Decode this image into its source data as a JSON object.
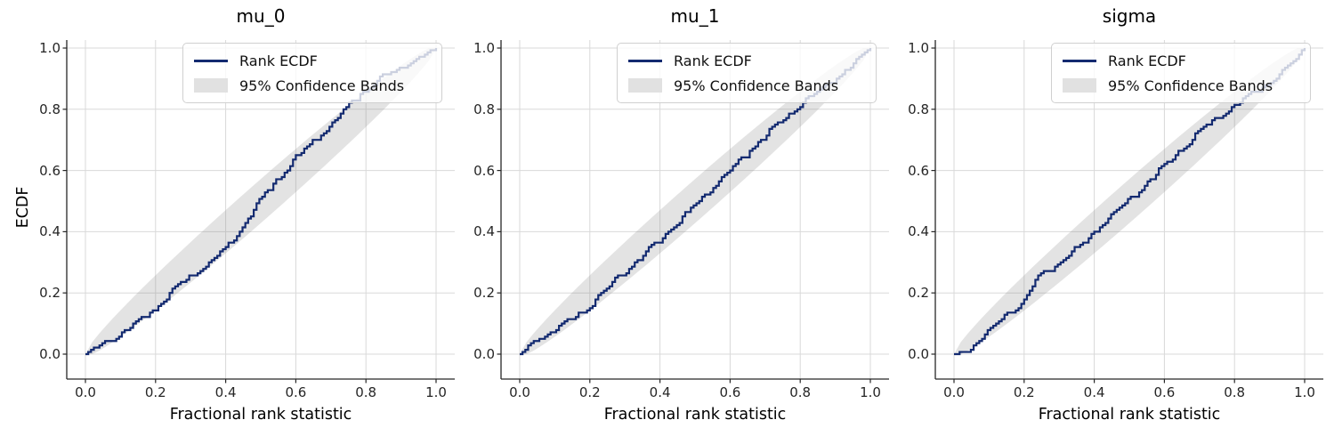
{
  "figure": {
    "background": "#ffffff",
    "shared_xlabel": "Fractional rank statistic",
    "shared_ylabel": "ECDF"
  },
  "colors": {
    "rank_ecdf_line": "#132a70",
    "confidence_band_fill": "#808080",
    "confidence_band_opacity": 0.22,
    "grid_line": "#d9d9d9",
    "axis_spine": "#262626",
    "tick_label": "#262626",
    "legend_border": "#d0d0d0",
    "legend_background": "rgba(255,255,255,0.78)"
  },
  "chart_data": [
    {
      "type": "line",
      "title": "mu_0",
      "xlabel": "Fractional rank statistic",
      "ylabel": "ECDF",
      "xlim": [
        -0.05,
        1.05
      ],
      "ylim": [
        -0.08,
        1.09
      ],
      "grid": true,
      "xticks": [
        "0.0",
        "0.2",
        "0.4",
        "0.6",
        "0.8",
        "1.0"
      ],
      "yticks": [
        "0.0",
        "0.2",
        "0.4",
        "0.6",
        "0.8",
        "1.0"
      ],
      "legend": {
        "position": "upper center-right",
        "entries": [
          {
            "label": "Rank ECDF",
            "type": "line",
            "color": "#132a70"
          },
          {
            "label": "95% Confidence Bands",
            "type": "patch",
            "color": "#e1e1e1"
          }
        ]
      },
      "series": [
        {
          "name": "Rank ECDF",
          "x": [
            0,
            0.04,
            0.08,
            0.12,
            0.16,
            0.2,
            0.24,
            0.28,
            0.32,
            0.36,
            0.4,
            0.44,
            0.48,
            0.52,
            0.56,
            0.6,
            0.64,
            0.68,
            0.72,
            0.76,
            0.8,
            0.84,
            0.88,
            0.92,
            0.96,
            1.0
          ],
          "y": [
            0,
            0.028,
            0.052,
            0.08,
            0.114,
            0.15,
            0.198,
            0.236,
            0.27,
            0.304,
            0.345,
            0.405,
            0.472,
            0.532,
            0.588,
            0.64,
            0.684,
            0.728,
            0.773,
            0.822,
            0.865,
            0.898,
            0.924,
            0.948,
            0.972,
            1.0
          ]
        }
      ],
      "confidence_band": {
        "label": "95% Confidence Bands",
        "level": "95%",
        "center": "diagonal y = x",
        "half_width_coef": 0.144,
        "half_width_rule": "coef * sqrt(x*(1-x))"
      }
    },
    {
      "type": "line",
      "title": "mu_1",
      "xlabel": "Fractional rank statistic",
      "ylabel": "",
      "xlim": [
        -0.05,
        1.05
      ],
      "ylim": [
        -0.08,
        1.09
      ],
      "grid": true,
      "xticks": [
        "0.0",
        "0.2",
        "0.4",
        "0.6",
        "0.8",
        "1.0"
      ],
      "yticks": [
        "0.0",
        "0.2",
        "0.4",
        "0.6",
        "0.8",
        "1.0"
      ],
      "legend": {
        "position": "upper center-right",
        "entries": [
          {
            "label": "Rank ECDF",
            "type": "line",
            "color": "#132a70"
          },
          {
            "label": "95% Confidence Bands",
            "type": "patch",
            "color": "#e1e1e1"
          }
        ]
      },
      "series": [
        {
          "name": "Rank ECDF",
          "x": [
            0,
            0.04,
            0.08,
            0.12,
            0.16,
            0.2,
            0.24,
            0.28,
            0.32,
            0.36,
            0.4,
            0.44,
            0.48,
            0.52,
            0.56,
            0.6,
            0.64,
            0.68,
            0.72,
            0.76,
            0.8,
            0.84,
            0.88,
            0.92,
            0.96,
            1.0
          ],
          "y": [
            0,
            0.04,
            0.067,
            0.092,
            0.124,
            0.158,
            0.202,
            0.249,
            0.29,
            0.332,
            0.374,
            0.418,
            0.462,
            0.51,
            0.556,
            0.6,
            0.646,
            0.692,
            0.736,
            0.773,
            0.816,
            0.848,
            0.882,
            0.916,
            0.958,
            1.0
          ]
        }
      ],
      "confidence_band": {
        "label": "95% Confidence Bands",
        "level": "95%",
        "center": "diagonal y = x",
        "half_width_coef": 0.144,
        "half_width_rule": "coef * sqrt(x*(1-x))"
      }
    },
    {
      "type": "line",
      "title": "sigma",
      "xlabel": "Fractional rank statistic",
      "ylabel": "",
      "xlim": [
        -0.05,
        1.05
      ],
      "ylim": [
        -0.08,
        1.09
      ],
      "grid": true,
      "xticks": [
        "0.0",
        "0.2",
        "0.4",
        "0.6",
        "0.8",
        "1.0"
      ],
      "yticks": [
        "0.0",
        "0.2",
        "0.4",
        "0.6",
        "0.8",
        "1.0"
      ],
      "legend": {
        "position": "upper center-right",
        "entries": [
          {
            "label": "Rank ECDF",
            "type": "line",
            "color": "#132a70"
          },
          {
            "label": "95% Confidence Bands",
            "type": "patch",
            "color": "#e1e1e1"
          }
        ]
      },
      "series": [
        {
          "name": "Rank ECDF",
          "x": [
            0,
            0.04,
            0.08,
            0.12,
            0.16,
            0.2,
            0.24,
            0.28,
            0.32,
            0.36,
            0.4,
            0.44,
            0.48,
            0.52,
            0.56,
            0.6,
            0.64,
            0.68,
            0.72,
            0.76,
            0.8,
            0.84,
            0.88,
            0.92,
            0.96,
            1.0
          ],
          "y": [
            0,
            0.01,
            0.056,
            0.098,
            0.136,
            0.175,
            0.252,
            0.278,
            0.318,
            0.352,
            0.4,
            0.444,
            0.485,
            0.526,
            0.57,
            0.615,
            0.66,
            0.703,
            0.745,
            0.782,
            0.81,
            0.844,
            0.872,
            0.902,
            0.946,
            1.0
          ]
        }
      ],
      "confidence_band": {
        "label": "95% Confidence Bands",
        "level": "95%",
        "center": "diagonal y = x",
        "half_width_coef": 0.144,
        "half_width_rule": "coef * sqrt(x*(1-x))"
      }
    }
  ]
}
